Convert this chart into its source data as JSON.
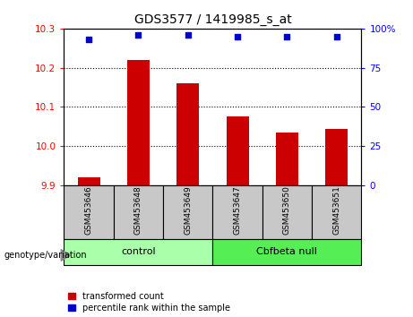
{
  "title": "GDS3577 / 1419985_s_at",
  "samples": [
    "GSM453646",
    "GSM453648",
    "GSM453649",
    "GSM453647",
    "GSM453650",
    "GSM453651"
  ],
  "bar_values": [
    9.92,
    10.22,
    10.16,
    10.075,
    10.035,
    10.045
  ],
  "percentile_values": [
    93,
    96,
    96,
    95,
    95,
    95
  ],
  "ylim_left": [
    9.9,
    10.3
  ],
  "ylim_right": [
    0,
    100
  ],
  "yticks_left": [
    9.9,
    10.0,
    10.1,
    10.2,
    10.3
  ],
  "yticks_right": [
    0,
    25,
    50,
    75,
    100
  ],
  "bar_color": "#cc0000",
  "dot_color": "#0000cc",
  "group_colors": [
    "#aaffaa",
    "#55ee55"
  ],
  "sample_label_bg": "#c8c8c8",
  "legend_red_label": "transformed count",
  "legend_blue_label": "percentile rank within the sample",
  "genotype_label": "genotype/variation"
}
